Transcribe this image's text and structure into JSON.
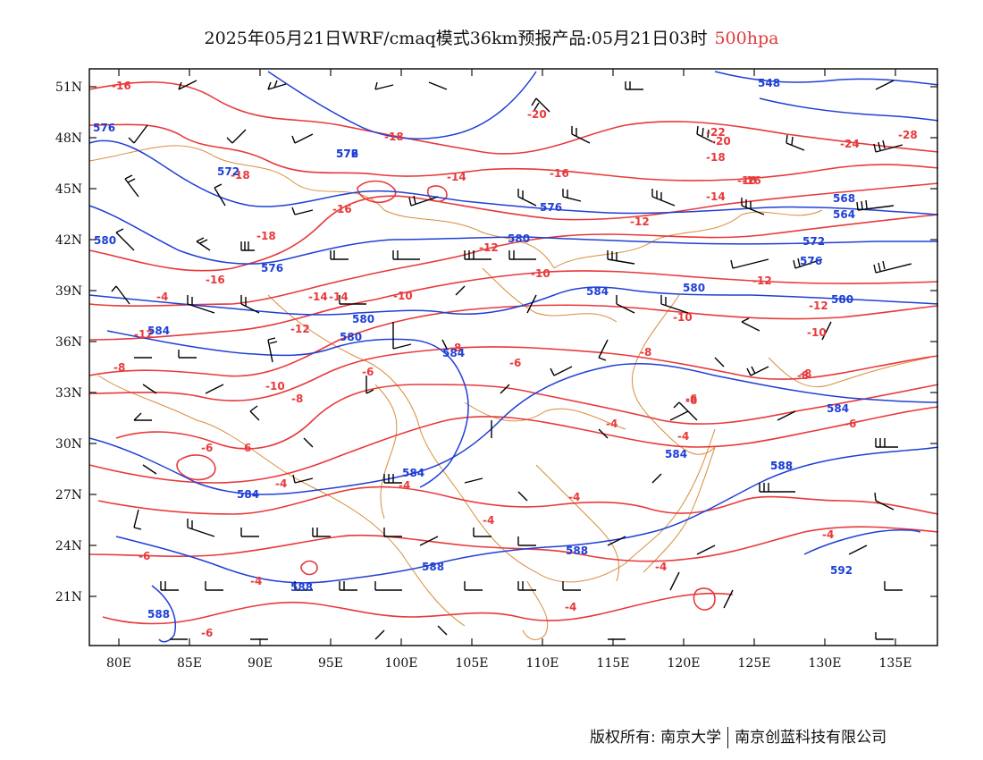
{
  "title": {
    "main": "2025年05月21日WRF/cmaq模式36km预报产品:05月21日03时",
    "level": "500hpa",
    "level_color": "#e03a3a"
  },
  "axes": {
    "lat_labels": [
      "51N",
      "48N",
      "45N",
      "42N",
      "39N",
      "36N",
      "33N",
      "30N",
      "27N",
      "24N",
      "21N"
    ],
    "lon_labels": [
      "80E",
      "85E",
      "90E",
      "95E",
      "100E",
      "105E",
      "110E",
      "115E",
      "120E",
      "125E",
      "130E",
      "135E"
    ]
  },
  "colors": {
    "temperature": "#e8393b",
    "geopotential": "#1f3fd6",
    "boundary": "#d98c3a",
    "wind": "#000000"
  },
  "layers": {
    "temperature_labels": [
      "-16",
      "-18",
      "-16",
      "-18",
      "-16",
      "-14",
      "-12",
      "-12",
      "-8",
      "-10",
      "-6",
      "-4",
      "-4",
      "-6",
      "-8",
      "-10",
      "-12",
      "-14",
      "-16",
      "-18",
      "-20",
      "-22",
      "-24",
      "-28",
      "-20",
      "-18",
      "-16",
      "-14",
      "-12",
      "-10",
      "-8",
      "-6",
      "-4",
      "-6",
      "-8",
      "-10",
      "-12",
      "-6",
      "-4",
      "-4",
      "-4",
      "-4",
      "-4",
      "-4",
      "-6",
      "-6",
      "-8",
      "-6",
      "-10",
      "-12",
      "-14",
      "-16",
      "-4",
      "-8",
      "-4",
      "-6"
    ],
    "height_labels": [
      "576",
      "572",
      "576",
      "580",
      "576",
      "584",
      "580",
      "584",
      "580",
      "584",
      "588",
      "584",
      "584",
      "588",
      "588",
      "592",
      "584",
      "580",
      "576",
      "572",
      "548",
      "564",
      "568",
      "572",
      "588",
      "584",
      "576",
      "580",
      "580",
      "588",
      "588"
    ]
  },
  "footer": {
    "owner_label": "版权所有:",
    "org1": "南京大学",
    "org2": "南京创蓝科技有限公司"
  }
}
